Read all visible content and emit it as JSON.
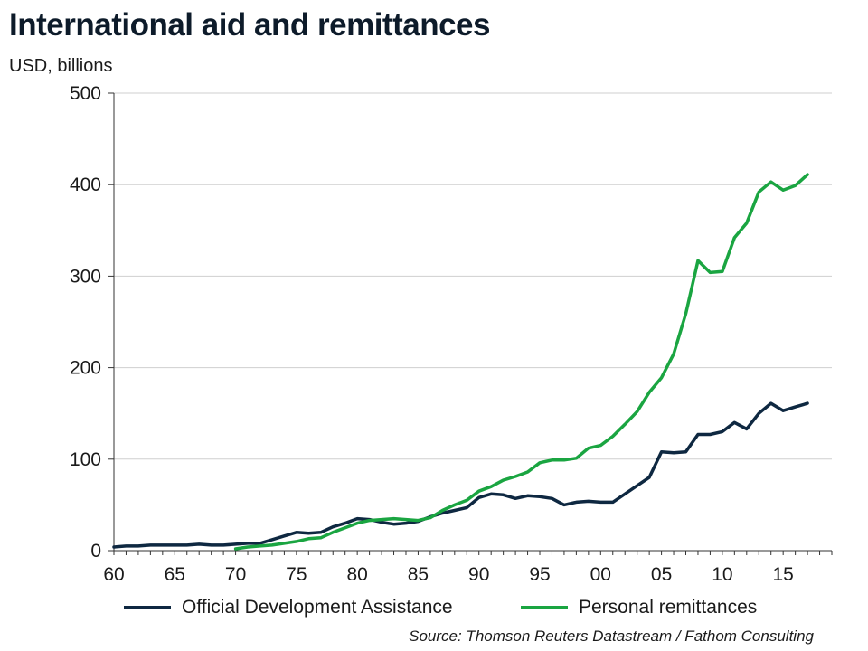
{
  "page": {
    "title": "International aid and remittances",
    "unit_label": "USD, billions",
    "source": "Source: Thomson Reuters Datastream / Fathom Consulting"
  },
  "colors": {
    "oda": "#0e2841",
    "remittances": "#1aa541",
    "grid": "#cfcfcf",
    "axis": "#333333"
  },
  "chart_data": {
    "type": "line",
    "title": "International aid and remittances",
    "ylabel": "USD, billions",
    "xlim": [
      1960,
      2019
    ],
    "ylim": [
      0,
      500
    ],
    "yticks": [
      0,
      100,
      200,
      300,
      400,
      500
    ],
    "xticks": [
      1960,
      1965,
      1970,
      1975,
      1980,
      1985,
      1990,
      1995,
      2000,
      2005,
      2010,
      2015
    ],
    "xtick_labels": [
      "60",
      "65",
      "70",
      "75",
      "80",
      "85",
      "90",
      "95",
      "00",
      "05",
      "10",
      "15"
    ],
    "grid": "horizontal",
    "legend_position": "bottom",
    "series": [
      {
        "name": "Official Development Assistance",
        "color": "#0e2841",
        "x": [
          1960,
          1961,
          1962,
          1963,
          1964,
          1965,
          1966,
          1967,
          1968,
          1969,
          1970,
          1971,
          1972,
          1973,
          1974,
          1975,
          1976,
          1977,
          1978,
          1979,
          1980,
          1981,
          1982,
          1983,
          1984,
          1985,
          1986,
          1987,
          1988,
          1989,
          1990,
          1991,
          1992,
          1993,
          1994,
          1995,
          1996,
          1997,
          1998,
          1999,
          2000,
          2001,
          2002,
          2003,
          2004,
          2005,
          2006,
          2007,
          2008,
          2009,
          2010,
          2011,
          2012,
          2013,
          2014,
          2015,
          2016,
          2017
        ],
        "y": [
          4,
          5,
          5,
          6,
          6,
          6,
          6,
          7,
          6,
          6,
          7,
          8,
          8,
          12,
          16,
          20,
          19,
          20,
          26,
          30,
          35,
          34,
          31,
          29,
          30,
          32,
          37,
          41,
          44,
          47,
          58,
          62,
          61,
          57,
          60,
          59,
          57,
          50,
          53,
          54,
          53,
          53,
          62,
          71,
          80,
          108,
          107,
          108,
          127,
          127,
          130,
          140,
          133,
          150,
          161,
          153,
          157,
          161
        ]
      },
      {
        "name": "Personal remittances",
        "color": "#1aa541",
        "x": [
          1970,
          1971,
          1972,
          1973,
          1974,
          1975,
          1976,
          1977,
          1978,
          1979,
          1980,
          1981,
          1982,
          1983,
          1984,
          1985,
          1986,
          1987,
          1988,
          1989,
          1990,
          1991,
          1992,
          1993,
          1994,
          1995,
          1996,
          1997,
          1998,
          1999,
          2000,
          2001,
          2002,
          2003,
          2004,
          2005,
          2006,
          2007,
          2008,
          2009,
          2010,
          2011,
          2012,
          2013,
          2014,
          2015,
          2016,
          2017
        ],
        "y": [
          2,
          4,
          5,
          6,
          8,
          10,
          13,
          14,
          20,
          25,
          30,
          33,
          34,
          35,
          34,
          33,
          36,
          44,
          50,
          55,
          65,
          70,
          77,
          81,
          86,
          96,
          99,
          99,
          101,
          112,
          115,
          125,
          138,
          152,
          173,
          189,
          215,
          259,
          317,
          304,
          305,
          342,
          358,
          392,
          403,
          394,
          399,
          411
        ]
      }
    ]
  }
}
